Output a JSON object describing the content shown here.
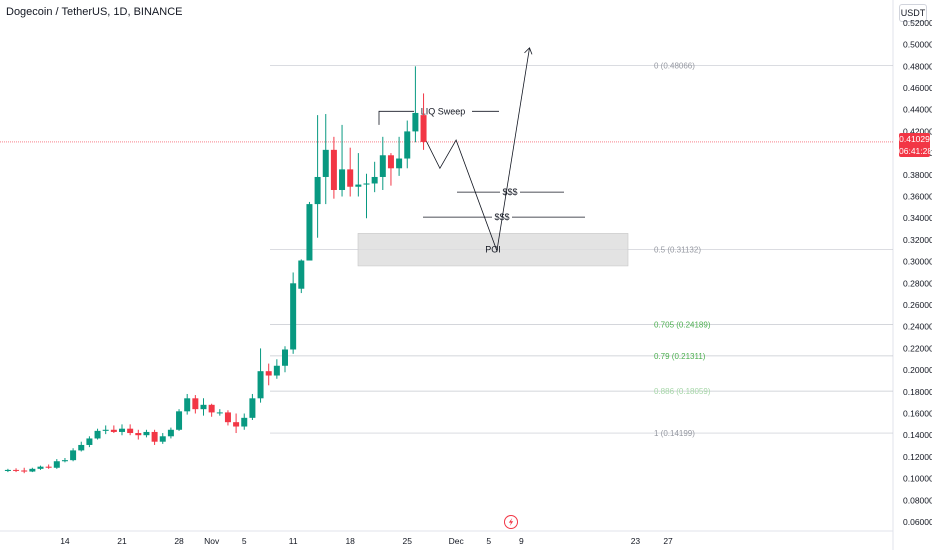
{
  "header": {
    "title": "Dogecoin / TetherUS, 1D, BINANCE",
    "currency": "USDT"
  },
  "last_price": {
    "value": "0.41029",
    "countdown": "06:41:28",
    "color": "#f23645"
  },
  "colors": {
    "up": "#089981",
    "down": "#f23645",
    "fib_gray": "#9598a1",
    "fib_green": "#4caf50",
    "fib_light": "#a5d6a7"
  },
  "icons": {
    "bottom": "lightning-icon"
  },
  "chart_data": {
    "type": "candlestick",
    "y_axis": {
      "ylim": [
        0.06,
        0.52
      ],
      "ticks": [
        "0.06000",
        "0.08000",
        "0.10000",
        "0.12000",
        "0.14000",
        "0.16000",
        "0.18000",
        "0.20000",
        "0.22000",
        "0.24000",
        "0.26000",
        "0.28000",
        "0.30000",
        "0.32000",
        "0.34000",
        "0.36000",
        "0.38000",
        "0.40000",
        "0.42000",
        "0.44000",
        "0.46000",
        "0.48000",
        "0.50000",
        "0.52000"
      ]
    },
    "x_axis": {
      "ticks": [
        {
          "label": "14",
          "day": 14
        },
        {
          "label": "21",
          "day": 21
        },
        {
          "label": "28",
          "day": 28
        },
        {
          "label": "Nov",
          "day": 32
        },
        {
          "label": "5",
          "day": 36
        },
        {
          "label": "11",
          "day": 42
        },
        {
          "label": "18",
          "day": 49
        },
        {
          "label": "25",
          "day": 56
        },
        {
          "label": "Dec",
          "day": 62
        },
        {
          "label": "5",
          "day": 66
        },
        {
          "label": "9",
          "day": 70
        },
        {
          "label": "23",
          "day": 84
        },
        {
          "label": "27",
          "day": 88
        }
      ]
    },
    "candles": [
      {
        "o": 0.107,
        "h": 0.109,
        "l": 0.106,
        "c": 0.108
      },
      {
        "o": 0.108,
        "h": 0.1095,
        "l": 0.106,
        "c": 0.1075
      },
      {
        "o": 0.1075,
        "h": 0.11,
        "l": 0.105,
        "c": 0.1065
      },
      {
        "o": 0.1065,
        "h": 0.11,
        "l": 0.106,
        "c": 0.109
      },
      {
        "o": 0.109,
        "h": 0.112,
        "l": 0.108,
        "c": 0.111
      },
      {
        "o": 0.111,
        "h": 0.113,
        "l": 0.109,
        "c": 0.11
      },
      {
        "o": 0.11,
        "h": 0.118,
        "l": 0.109,
        "c": 0.116
      },
      {
        "o": 0.116,
        "h": 0.119,
        "l": 0.115,
        "c": 0.117
      },
      {
        "o": 0.117,
        "h": 0.128,
        "l": 0.116,
        "c": 0.126
      },
      {
        "o": 0.126,
        "h": 0.134,
        "l": 0.125,
        "c": 0.131
      },
      {
        "o": 0.131,
        "h": 0.139,
        "l": 0.129,
        "c": 0.137
      },
      {
        "o": 0.137,
        "h": 0.146,
        "l": 0.136,
        "c": 0.144
      },
      {
        "o": 0.144,
        "h": 0.149,
        "l": 0.141,
        "c": 0.145
      },
      {
        "o": 0.145,
        "h": 0.149,
        "l": 0.142,
        "c": 0.143
      },
      {
        "o": 0.143,
        "h": 0.15,
        "l": 0.14,
        "c": 0.146
      },
      {
        "o": 0.146,
        "h": 0.15,
        "l": 0.14,
        "c": 0.142
      },
      {
        "o": 0.142,
        "h": 0.145,
        "l": 0.136,
        "c": 0.14
      },
      {
        "o": 0.14,
        "h": 0.145,
        "l": 0.138,
        "c": 0.143
      },
      {
        "o": 0.143,
        "h": 0.145,
        "l": 0.131,
        "c": 0.134
      },
      {
        "o": 0.134,
        "h": 0.142,
        "l": 0.132,
        "c": 0.139
      },
      {
        "o": 0.139,
        "h": 0.147,
        "l": 0.137,
        "c": 0.145
      },
      {
        "o": 0.145,
        "h": 0.164,
        "l": 0.144,
        "c": 0.162
      },
      {
        "o": 0.162,
        "h": 0.178,
        "l": 0.159,
        "c": 0.174
      },
      {
        "o": 0.174,
        "h": 0.177,
        "l": 0.16,
        "c": 0.164
      },
      {
        "o": 0.164,
        "h": 0.174,
        "l": 0.158,
        "c": 0.168
      },
      {
        "o": 0.168,
        "h": 0.169,
        "l": 0.157,
        "c": 0.161
      },
      {
        "o": 0.161,
        "h": 0.164,
        "l": 0.158,
        "c": 0.161
      },
      {
        "o": 0.161,
        "h": 0.163,
        "l": 0.149,
        "c": 0.152
      },
      {
        "o": 0.152,
        "h": 0.16,
        "l": 0.142,
        "c": 0.148
      },
      {
        "o": 0.148,
        "h": 0.16,
        "l": 0.145,
        "c": 0.156
      },
      {
        "o": 0.156,
        "h": 0.178,
        "l": 0.154,
        "c": 0.174
      },
      {
        "o": 0.174,
        "h": 0.22,
        "l": 0.17,
        "c": 0.199
      },
      {
        "o": 0.199,
        "h": 0.206,
        "l": 0.186,
        "c": 0.195
      },
      {
        "o": 0.195,
        "h": 0.21,
        "l": 0.192,
        "c": 0.204
      },
      {
        "o": 0.204,
        "h": 0.222,
        "l": 0.198,
        "c": 0.219
      },
      {
        "o": 0.219,
        "h": 0.29,
        "l": 0.215,
        "c": 0.28
      },
      {
        "o": 0.275,
        "h": 0.302,
        "l": 0.271,
        "c": 0.301
      },
      {
        "o": 0.301,
        "h": 0.355,
        "l": 0.301,
        "c": 0.353
      },
      {
        "o": 0.353,
        "h": 0.435,
        "l": 0.322,
        "c": 0.378
      },
      {
        "o": 0.378,
        "h": 0.436,
        "l": 0.353,
        "c": 0.403
      },
      {
        "o": 0.403,
        "h": 0.415,
        "l": 0.358,
        "c": 0.366
      },
      {
        "o": 0.366,
        "h": 0.426,
        "l": 0.36,
        "c": 0.385
      },
      {
        "o": 0.385,
        "h": 0.405,
        "l": 0.36,
        "c": 0.369
      },
      {
        "o": 0.369,
        "h": 0.4,
        "l": 0.36,
        "c": 0.371
      },
      {
        "o": 0.371,
        "h": 0.381,
        "l": 0.34,
        "c": 0.372
      },
      {
        "o": 0.372,
        "h": 0.392,
        "l": 0.364,
        "c": 0.378
      },
      {
        "o": 0.378,
        "h": 0.415,
        "l": 0.366,
        "c": 0.398
      },
      {
        "o": 0.398,
        "h": 0.4,
        "l": 0.37,
        "c": 0.386
      },
      {
        "o": 0.386,
        "h": 0.415,
        "l": 0.379,
        "c": 0.395
      },
      {
        "o": 0.395,
        "h": 0.43,
        "l": 0.386,
        "c": 0.42
      },
      {
        "o": 0.42,
        "h": 0.48,
        "l": 0.41,
        "c": 0.437
      },
      {
        "o": 0.435,
        "h": 0.455,
        "l": 0.403,
        "c": 0.4103
      }
    ],
    "fib_levels": [
      {
        "label": "0 (0.48066)",
        "price": 0.48066,
        "tone": "gray"
      },
      {
        "label": "0.5 (0.31132)",
        "price": 0.31132,
        "tone": "gray"
      },
      {
        "label": "0.705 (0.24189)",
        "price": 0.24189,
        "tone": "green"
      },
      {
        "label": "0.79 (0.21311)",
        "price": 0.21311,
        "tone": "green"
      },
      {
        "label": "0.886 (0.18059)",
        "price": 0.18059,
        "tone": "light"
      },
      {
        "label": "1 (0.14199)",
        "price": 0.14199,
        "tone": "gray"
      }
    ],
    "annotations": {
      "liq_sweep": "LIQ Sweep",
      "liquidity_1": "$$$",
      "liquidity_2": "$$$",
      "poi": "POI",
      "poi_zone": [
        0.296,
        0.326
      ]
    },
    "projected_path": [
      {
        "day": 58,
        "price": 0.416
      },
      {
        "day": 60,
        "price": 0.386
      },
      {
        "day": 62,
        "price": 0.412
      },
      {
        "day": 67,
        "price": 0.31
      },
      {
        "day": 71,
        "price": 0.497
      }
    ]
  }
}
